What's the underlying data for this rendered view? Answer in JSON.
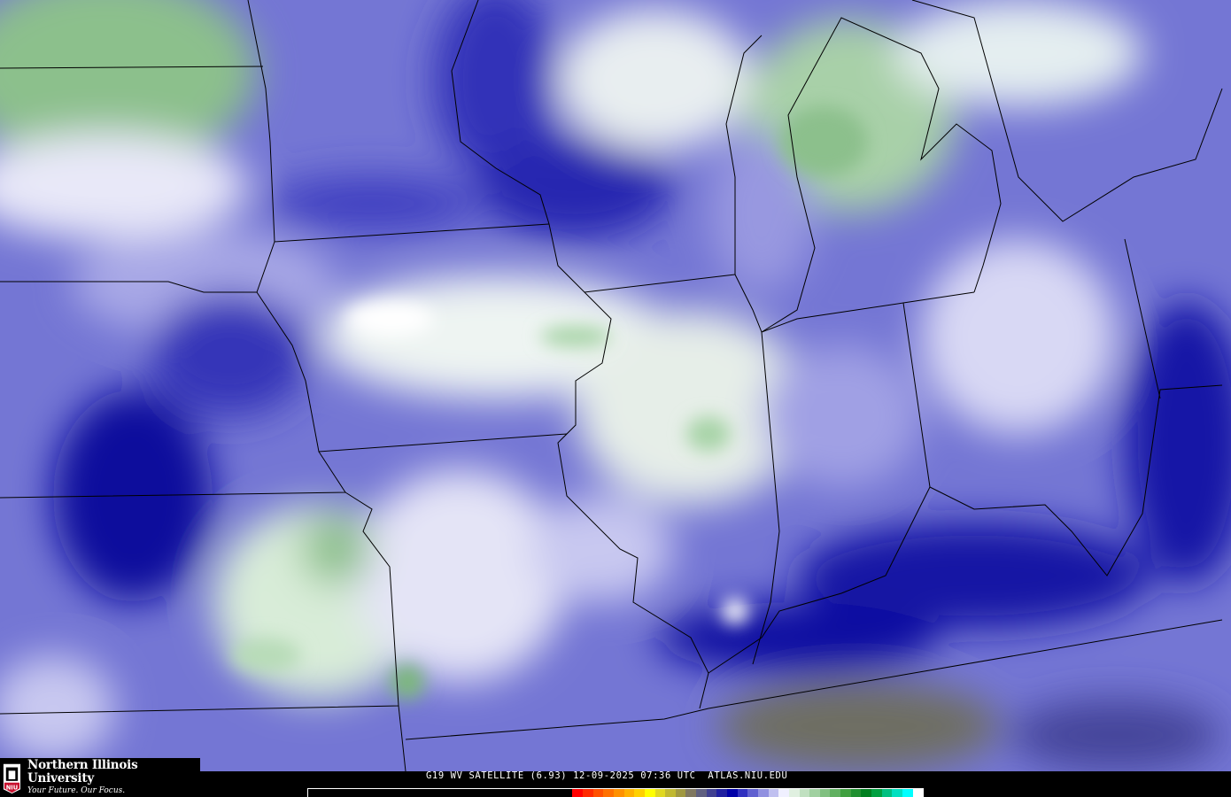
{
  "logo": {
    "name": "Northern Illinois University",
    "tagline": "Your Future. Our Focus.",
    "seal_text": "NIU"
  },
  "caption": {
    "product": "G19 WV SATELLITE (6.93)",
    "date": "12-09-2025",
    "time": "07:36 UTC",
    "site": "ATLAS.NIU.EDU"
  },
  "colorbar": {
    "colors": [
      "#000000",
      "#ff0000",
      "#ff2a00",
      "#ff5000",
      "#ff7000",
      "#ff9000",
      "#ffb000",
      "#ffd000",
      "#ffff00",
      "#e0d820",
      "#c0b830",
      "#a09840",
      "#807860",
      "#606080",
      "#404090",
      "#2020a0",
      "#0000a8",
      "#3030c0",
      "#6060d0",
      "#9090e0",
      "#c0c0f0",
      "#f0f0ff",
      "#e0f0e0",
      "#c0e0c0",
      "#a0d0a0",
      "#80c080",
      "#60b060",
      "#40a040",
      "#209030",
      "#008020",
      "#00a040",
      "#00c080",
      "#00e0c0",
      "#00ffff",
      "#ffffff"
    ],
    "black_fraction": 0.43
  },
  "colors": {
    "base": "#6a6cd0",
    "dark": "#1414a0",
    "light": "#eeeefa",
    "green": "#8cc48c",
    "brown": "#6e6e62"
  }
}
